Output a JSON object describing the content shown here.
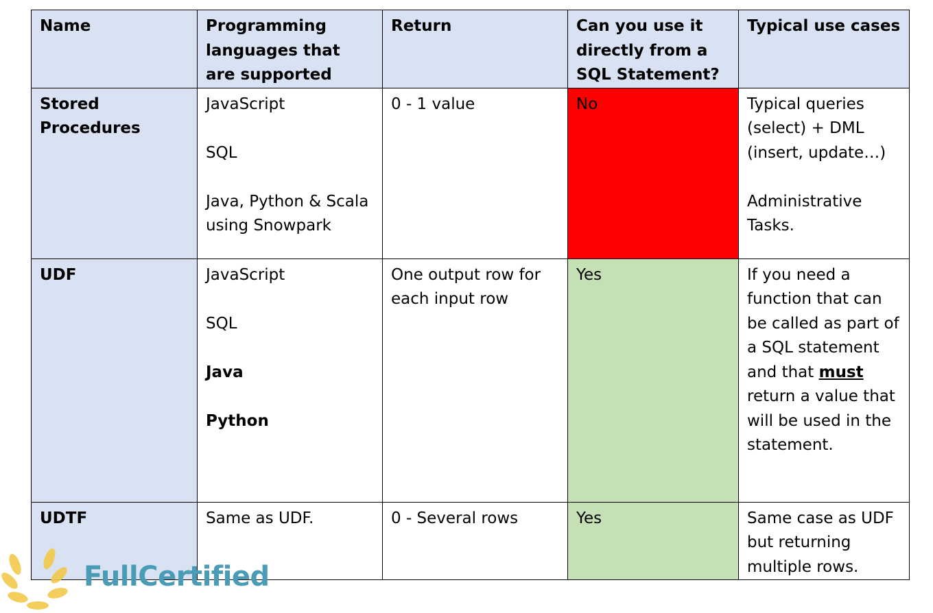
{
  "headers": {
    "name": "Name",
    "languages": "Programming languages that are supported",
    "return": "Return",
    "sql_direct": "Can you use it directly from a SQL Statement?",
    "use_cases": "Typical use cases"
  },
  "rows": [
    {
      "name": "Stored Procedures",
      "languages": [
        "JavaScript",
        "SQL",
        "Java, Python & Scala using Snowpark"
      ],
      "return": "0 - 1 value",
      "sql_direct": "No",
      "use_cases": [
        "Typical queries (select) + DML (insert, update…)",
        "Administrative Tasks."
      ]
    },
    {
      "name": "UDF",
      "languages": [
        "JavaScript",
        "SQL",
        "Java",
        "Python"
      ],
      "return": "One output row for each input row",
      "sql_direct": "Yes",
      "use_cases_before": "If you need a function that can be called as part of a SQL statement and that ",
      "use_cases_emph": "must",
      "use_cases_after": " return a value that will be used in the statement."
    },
    {
      "name": "UDTF",
      "languages": [
        "Same as UDF."
      ],
      "return": "0 - Several rows",
      "sql_direct": "Yes",
      "use_cases": [
        "Same case as UDF but returning multiple rows."
      ]
    }
  ],
  "colors": {
    "header_bg": "#d9e2f3",
    "no_bg": "#ff0000",
    "yes_bg": "#c5e0b4",
    "logo_text": "#4a9bb5",
    "laurel": "#f2c94c"
  },
  "logo": {
    "text": "FullCertified",
    "icon": "laurel-wreath-icon"
  }
}
